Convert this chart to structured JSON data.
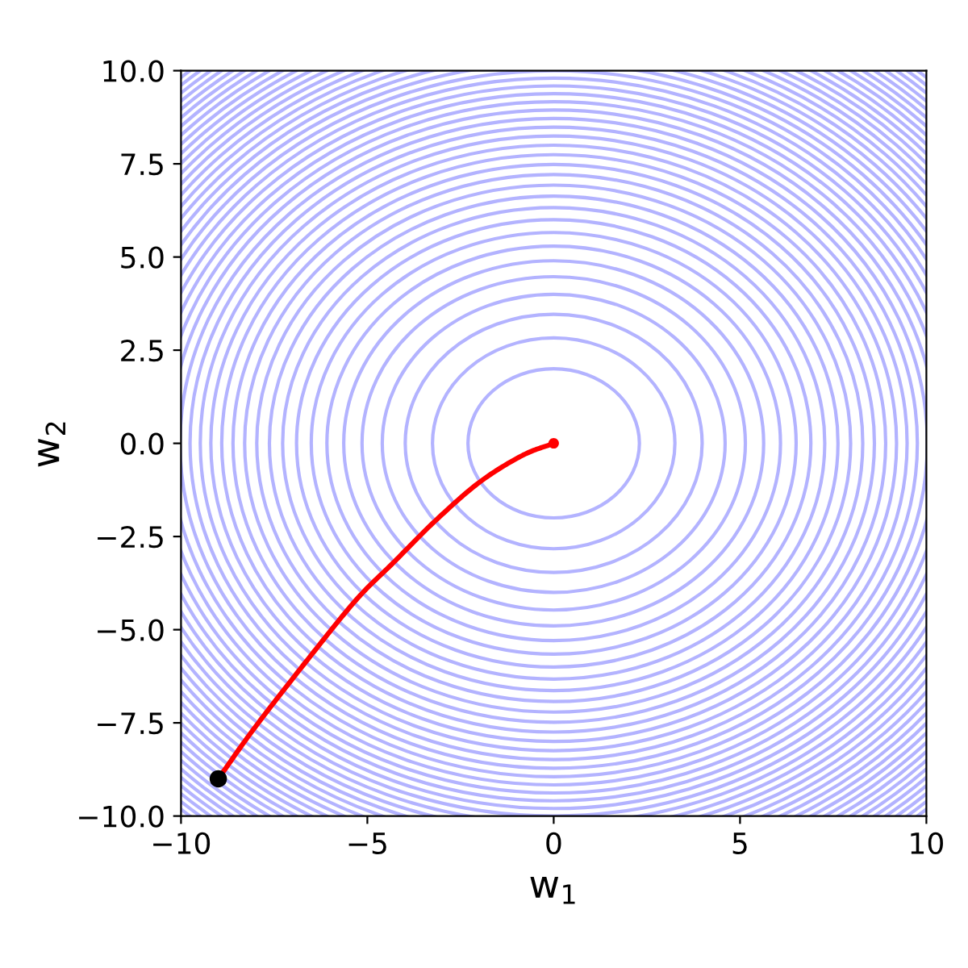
{
  "chart_data": {
    "type": "line",
    "xlabel": "w$_{1}$",
    "ylabel": "w$_{2}$",
    "xlim": [
      -10,
      10
    ],
    "ylim": [
      -10,
      10
    ],
    "line_style": "solid",
    "xticks": [
      {
        "value": -10,
        "label": "−10"
      },
      {
        "value": -5,
        "label": "−5"
      },
      {
        "value": 0,
        "label": "0"
      },
      {
        "value": 5,
        "label": "5"
      },
      {
        "value": 10,
        "label": "10"
      }
    ],
    "yticks": [
      {
        "value": -10,
        "label": "−10.0"
      },
      {
        "value": -7.5,
        "label": "−7.5"
      },
      {
        "value": -5,
        "label": "−5.0"
      },
      {
        "value": -2.5,
        "label": "−2.5"
      },
      {
        "value": 0,
        "label": "0.0"
      },
      {
        "value": 2.5,
        "label": "2.5"
      },
      {
        "value": 5,
        "label": "5.0"
      },
      {
        "value": 7.5,
        "label": "7.5"
      },
      {
        "value": 10,
        "label": "10.0"
      }
    ],
    "series": [
      {
        "color": "#ff0000",
        "x": [
          -9,
          -8,
          -6.6,
          -5.3,
          -4.3,
          -3.2,
          -2,
          -0.85,
          0
        ],
        "values": [
          -9,
          -7.6,
          -5.8,
          -4.2,
          -3.2,
          -2.1,
          -1.05,
          -0.33,
          0
        ]
      },
      {
        "type": "scatter",
        "color": "#000000",
        "marker": "circle",
        "x": [
          -9
        ],
        "values": [
          -9
        ]
      },
      {
        "type": "scatter",
        "color": "#ff0000",
        "marker": "circle",
        "x": [
          0
        ],
        "values": [
          0
        ]
      }
    ]
  }
}
